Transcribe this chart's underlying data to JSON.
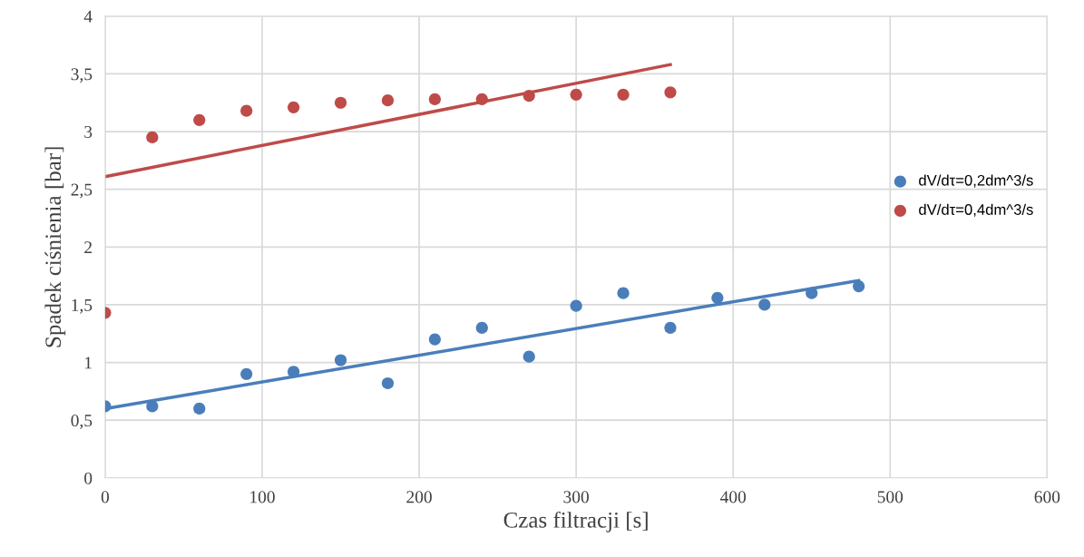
{
  "chart_data": {
    "type": "scatter",
    "xlabel": "Czas filtracji [s]",
    "ylabel": "Spadek ciśnienia [bar]",
    "xlim": [
      0,
      600
    ],
    "xticks": [
      0,
      100,
      200,
      300,
      400,
      500,
      600
    ],
    "ylim": [
      0,
      4
    ],
    "yticks": [
      0,
      {
        "value": 0.5,
        "label": "0,5"
      },
      1,
      {
        "value": 1.5,
        "label": "1,5"
      },
      2,
      {
        "value": 2.5,
        "label": "2,5"
      },
      3,
      {
        "value": 3.5,
        "label": "3,5"
      },
      4
    ],
    "grid": true,
    "legend": "right",
    "marker": "circle",
    "series": [
      {
        "name": "dV/dτ=0,2dm^3/s",
        "color": "#4a7ebb",
        "x": [
          0,
          30,
          60,
          90,
          120,
          150,
          180,
          210,
          240,
          270,
          300,
          330,
          360,
          390,
          420,
          450,
          480
        ],
        "values": [
          0.62,
          0.62,
          0.6,
          0.9,
          0.92,
          1.02,
          0.82,
          1.2,
          1.3,
          1.05,
          1.49,
          1.6,
          1.3,
          1.56,
          1.5,
          1.6,
          1.66
        ]
      },
      {
        "name": "dV/dτ=0,4dm^3/s",
        "color": "#be4b48",
        "x": [
          0,
          30,
          60,
          90,
          120,
          150,
          180,
          210,
          240,
          270,
          300,
          330,
          360
        ],
        "values": [
          1.43,
          2.95,
          3.1,
          3.18,
          3.21,
          3.25,
          3.27,
          3.28,
          3.28,
          3.31,
          3.32,
          3.32,
          3.34
        ]
      },
      {
        "type": "line",
        "marker": "none",
        "color": "#4a7ebb",
        "x": [
          0,
          480
        ],
        "values": [
          0.6,
          1.71
        ]
      },
      {
        "type": "line",
        "marker": "none",
        "color": "#be4b48",
        "x": [
          0,
          360
        ],
        "values": [
          2.61,
          3.58
        ]
      }
    ]
  }
}
